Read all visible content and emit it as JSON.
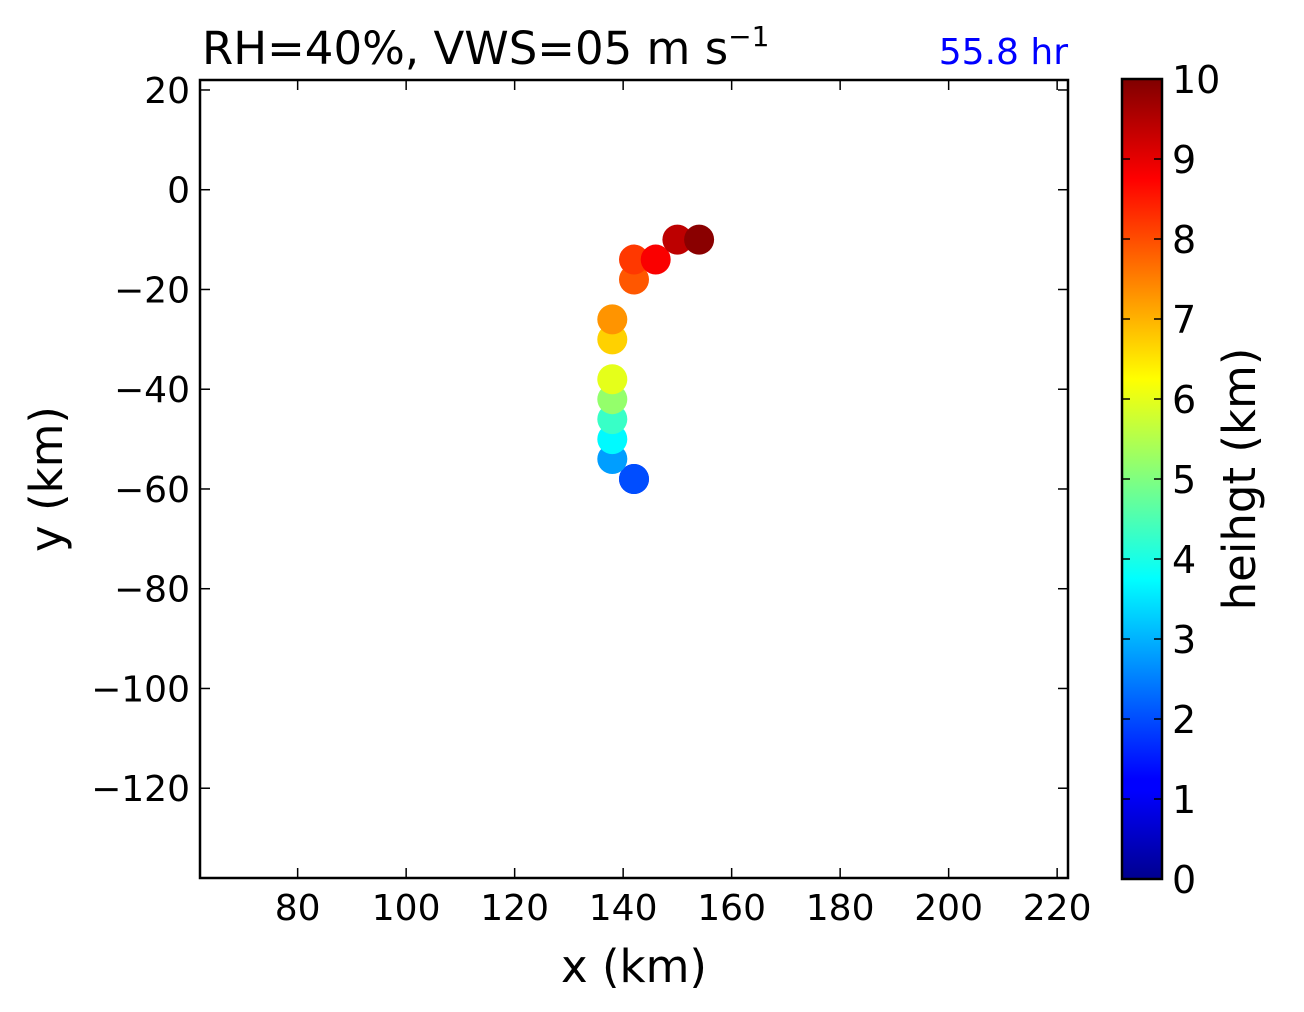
{
  "chart_data": {
    "type": "scatter",
    "title_main": "RH=40%, VWS=05 m s",
    "title_sup": "−1",
    "time_label": "55.8 hr",
    "time_label_color": "#0000ff",
    "xlabel": "x (km)",
    "ylabel": "y (km)",
    "xlim": [
      62,
      222
    ],
    "ylim": [
      -138,
      22
    ],
    "x_ticks": [
      80,
      100,
      120,
      140,
      160,
      180,
      200,
      220
    ],
    "y_ticks": [
      20,
      0,
      -20,
      -40,
      -60,
      -80,
      -100,
      -120
    ],
    "colorbar": {
      "label": "heihgt (km)",
      "range": [
        0,
        10
      ],
      "ticks": [
        0,
        1,
        2,
        3,
        4,
        5,
        6,
        7,
        8,
        9,
        10
      ],
      "colormap": "jet"
    },
    "points": [
      {
        "x": 142,
        "y": -58,
        "height": 1.7
      },
      {
        "x": 142,
        "y": -58,
        "height": 2.0
      },
      {
        "x": 138,
        "y": -54,
        "height": 2.8
      },
      {
        "x": 138,
        "y": -50,
        "height": 3.7
      },
      {
        "x": 138,
        "y": -46,
        "height": 4.3
      },
      {
        "x": 138,
        "y": -42,
        "height": 5.2
      },
      {
        "x": 138,
        "y": -38,
        "height": 6.0
      },
      {
        "x": 138,
        "y": -30,
        "height": 6.7
      },
      {
        "x": 138,
        "y": -26,
        "height": 7.3
      },
      {
        "x": 142,
        "y": -18,
        "height": 7.9
      },
      {
        "x": 142,
        "y": -14,
        "height": 8.2
      },
      {
        "x": 146,
        "y": -14,
        "height": 8.8
      },
      {
        "x": 150,
        "y": -10,
        "height": 9.4
      },
      {
        "x": 154,
        "y": -10,
        "height": 9.9
      }
    ]
  }
}
